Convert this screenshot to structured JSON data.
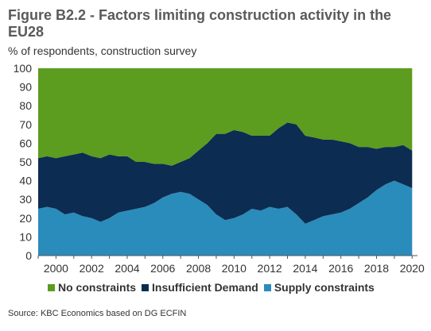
{
  "header": {
    "title": "Figure B2.2 - Factors limiting construction activity in the EU28",
    "subtitle": "% of respondents, construction survey"
  },
  "footer": {
    "source": "Source: KBC Economics based on DG ECFIN"
  },
  "colors": {
    "no_constraints": "#5c9c1e",
    "insufficient_demand": "#0c2c52",
    "supply_constraints": "#2a8cba"
  },
  "chart_data": {
    "type": "area",
    "stacked": true,
    "x": [
      1999.0,
      1999.5,
      2000.0,
      2000.5,
      2001.0,
      2001.5,
      2002.0,
      2002.5,
      2003.0,
      2003.5,
      2004.0,
      2004.5,
      2005.0,
      2005.5,
      2006.0,
      2006.5,
      2007.0,
      2007.5,
      2008.0,
      2008.5,
      2009.0,
      2009.5,
      2010.0,
      2010.5,
      2011.0,
      2011.5,
      2012.0,
      2012.5,
      2013.0,
      2013.5,
      2014.0,
      2014.5,
      2015.0,
      2015.5,
      2016.0,
      2016.5,
      2017.0,
      2017.5,
      2018.0,
      2018.5,
      2019.0,
      2019.5,
      2020.0
    ],
    "series": [
      {
        "name": "Supply constraints",
        "values": [
          25,
          26,
          25,
          22,
          23,
          21,
          20,
          18,
          20,
          23,
          24,
          25,
          26,
          28,
          31,
          33,
          34,
          33,
          30,
          27,
          22,
          19,
          20,
          22,
          25,
          24,
          26,
          25,
          26,
          22,
          17,
          19,
          21,
          22,
          23,
          25,
          28,
          31,
          35,
          38,
          40,
          38,
          36
        ]
      },
      {
        "name": "Insufficient Demand",
        "values": [
          27,
          27,
          27,
          31,
          31,
          34,
          33,
          34,
          34,
          30,
          29,
          25,
          24,
          21,
          18,
          15,
          16,
          19,
          26,
          33,
          43,
          46,
          47,
          44,
          39,
          40,
          38,
          43,
          45,
          48,
          47,
          44,
          41,
          40,
          38,
          35,
          30,
          27,
          22,
          20,
          18,
          21,
          20
        ]
      },
      {
        "name": "No constraints",
        "values": [
          48,
          47,
          48,
          47,
          46,
          45,
          47,
          48,
          46,
          47,
          47,
          50,
          50,
          51,
          51,
          52,
          50,
          48,
          44,
          40,
          35,
          35,
          33,
          34,
          36,
          36,
          36,
          32,
          29,
          30,
          36,
          37,
          38,
          38,
          39,
          40,
          42,
          42,
          43,
          42,
          42,
          41,
          44
        ]
      }
    ],
    "ylim": [
      0,
      100
    ],
    "y_ticks": [
      "0",
      "10",
      "20",
      "30",
      "40",
      "50",
      "60",
      "70",
      "80",
      "90",
      "100"
    ],
    "x_range": [
      1999.0,
      2020.3
    ],
    "x_ticks": [
      "2000",
      "2002",
      "2004",
      "2006",
      "2008",
      "2010",
      "2012",
      "2014",
      "2016",
      "2018",
      "2020"
    ],
    "grid": false,
    "legend": "bottom"
  }
}
